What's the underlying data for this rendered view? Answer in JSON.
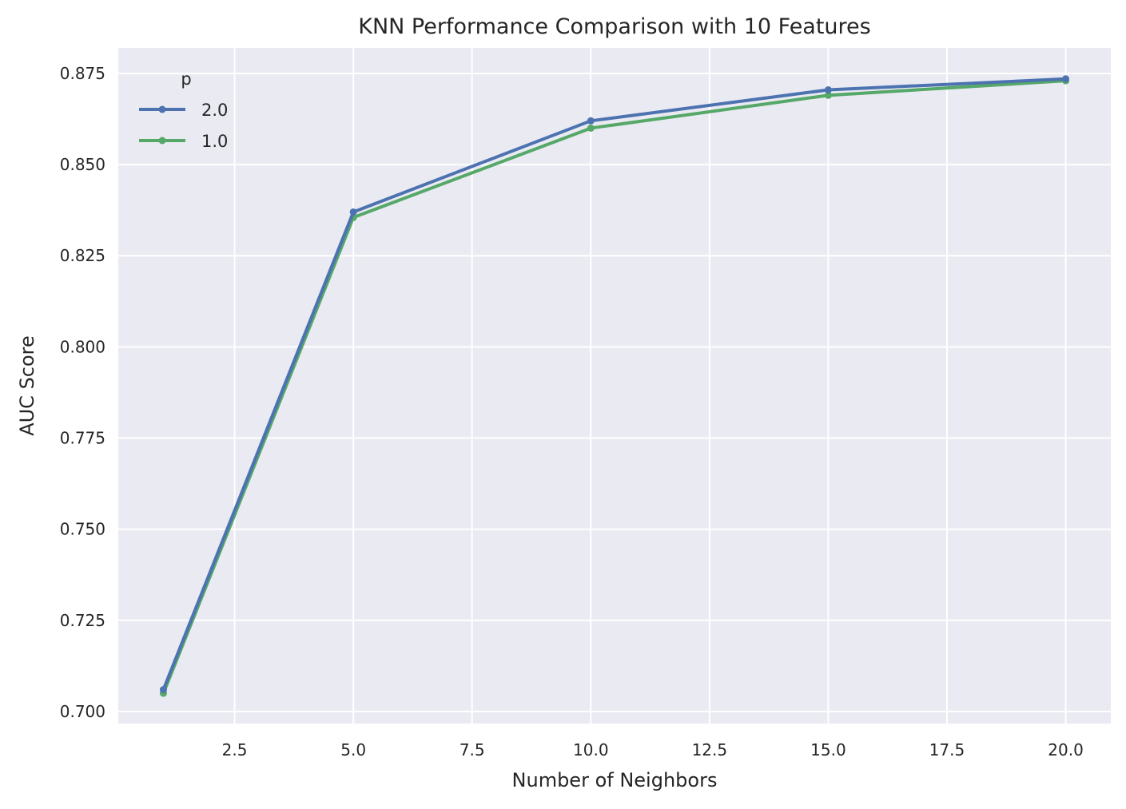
{
  "chart_data": {
    "type": "line",
    "title": "KNN Performance Comparison with 10 Features",
    "xlabel": "Number of Neighbors",
    "ylabel": "AUC Score",
    "xlim": [
      0.05,
      20.95
    ],
    "ylim": [
      0.6967,
      0.882
    ],
    "x_ticks": [
      2.5,
      5.0,
      7.5,
      10.0,
      12.5,
      15.0,
      17.5,
      20.0
    ],
    "x_tick_labels": [
      "2.5",
      "5.0",
      "7.5",
      "10.0",
      "12.5",
      "15.0",
      "17.5",
      "20.0"
    ],
    "y_ticks": [
      0.7,
      0.725,
      0.75,
      0.775,
      0.8,
      0.825,
      0.85,
      0.875
    ],
    "y_tick_labels": [
      "0.700",
      "0.725",
      "0.750",
      "0.775",
      "0.800",
      "0.825",
      "0.850",
      "0.875"
    ],
    "grid": true,
    "legend": {
      "title": "p",
      "position": "top-left"
    },
    "x": [
      1,
      5,
      10,
      15,
      20
    ],
    "series": [
      {
        "name": "2.0",
        "color": "#4c72b0",
        "values": [
          0.706,
          0.837,
          0.862,
          0.8705,
          0.8735
        ]
      },
      {
        "name": "1.0",
        "color": "#55a868",
        "values": [
          0.705,
          0.8355,
          0.86,
          0.869,
          0.873
        ]
      }
    ],
    "colors": {
      "plot_background": "#eaeaf2",
      "grid": "#ffffff",
      "text": "#262626"
    }
  }
}
